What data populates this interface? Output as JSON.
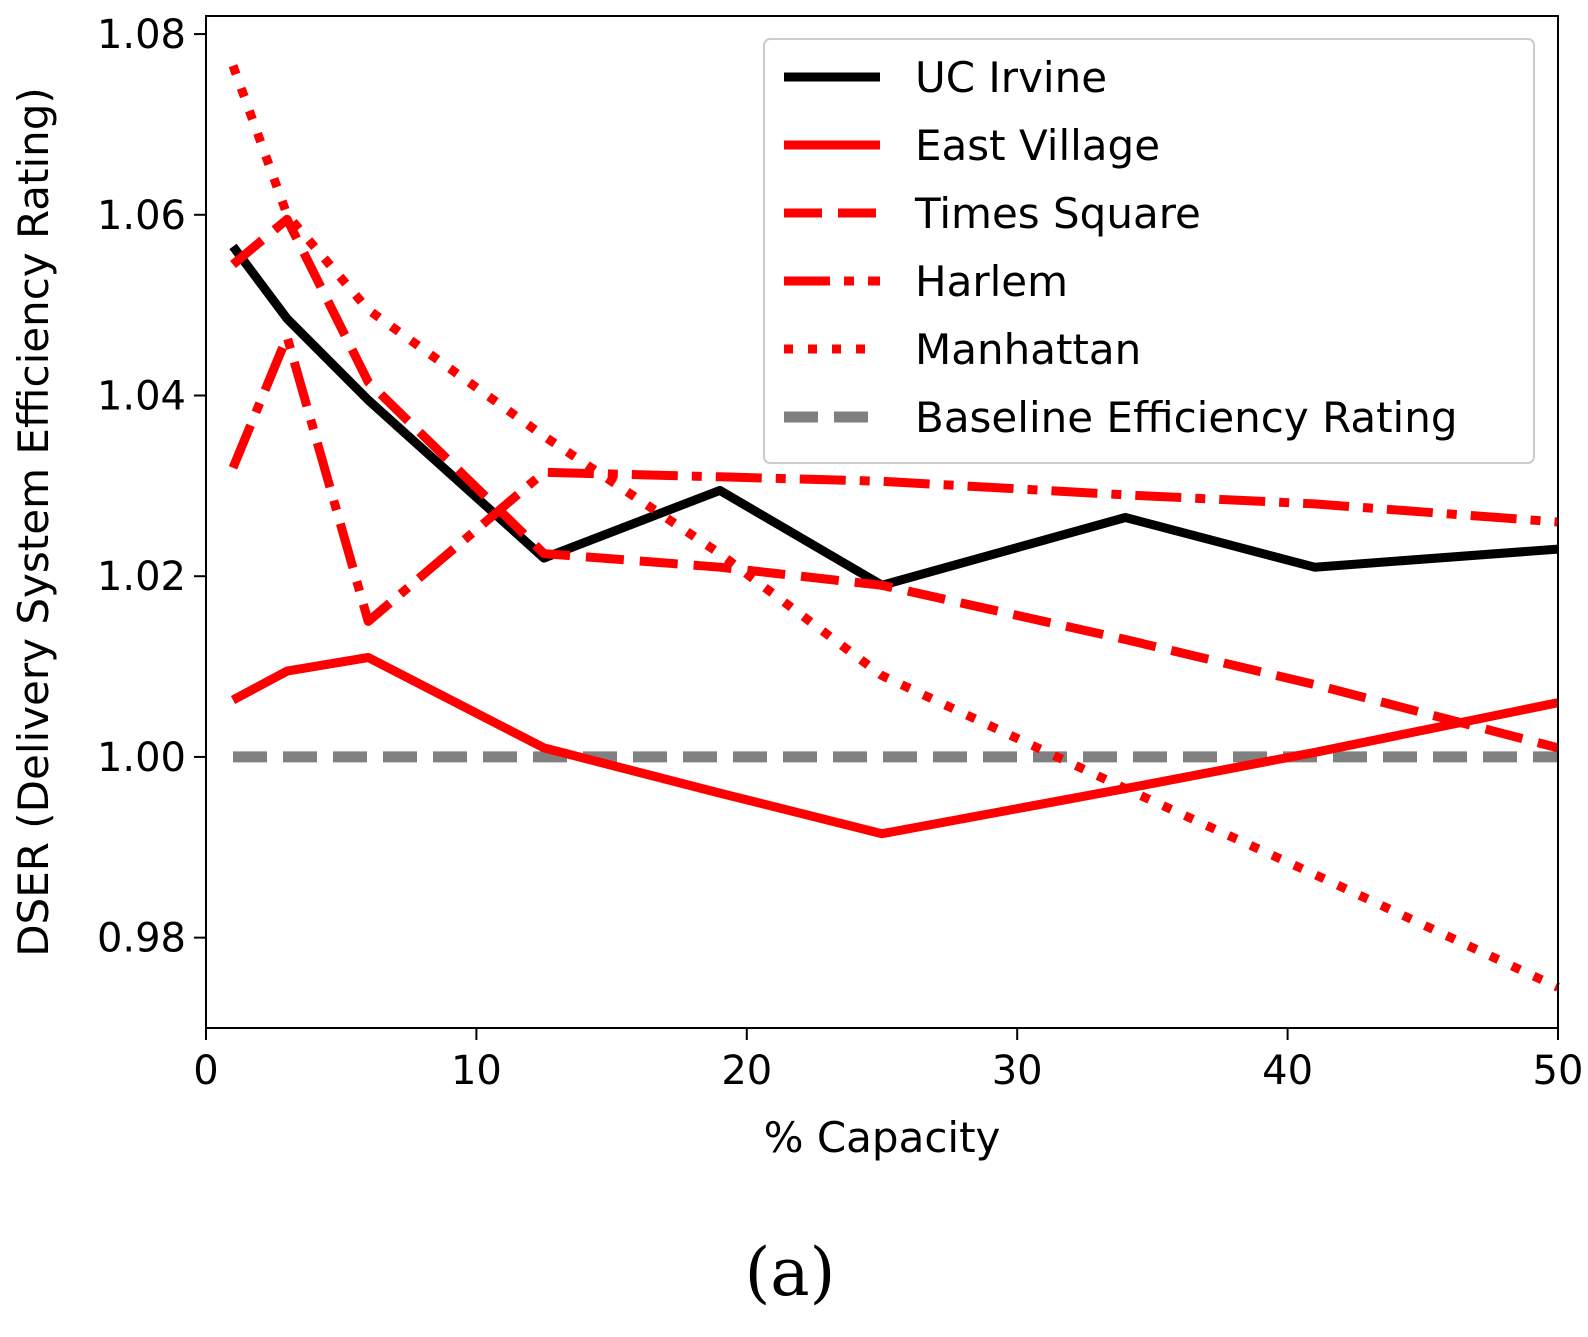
{
  "figure": {
    "caption": "(a)"
  },
  "chart_data": {
    "type": "line",
    "title": "",
    "xlabel": "% Capacity",
    "ylabel": "DSER (Delivery System Efficiency Rating)",
    "xlim": [
      0,
      50
    ],
    "ylim": [
      0.97,
      1.082
    ],
    "xticks": [
      0,
      10,
      20,
      30,
      40,
      50
    ],
    "xtick_labels": [
      "0",
      "10",
      "20",
      "30",
      "40",
      "50"
    ],
    "yticks": [
      0.98,
      1.0,
      1.02,
      1.04,
      1.06,
      1.08
    ],
    "ytick_labels": [
      "0.98",
      "1.00",
      "1.02",
      "1.04",
      "1.06",
      "1.08"
    ],
    "grid": false,
    "legend_position": "top-right",
    "series": [
      {
        "name": "UC Irvine",
        "color": "#000000",
        "style": "solid",
        "x": [
          1,
          3,
          6,
          12.5,
          19,
          25,
          34,
          41,
          50
        ],
        "y": [
          1.0565,
          1.0485,
          1.0395,
          1.022,
          1.0295,
          1.019,
          1.0265,
          1.021,
          1.023
        ]
      },
      {
        "name": "East Village",
        "color": "#ff0000",
        "style": "solid",
        "x": [
          1,
          3,
          6,
          12.5,
          19,
          25,
          34,
          41,
          50
        ],
        "y": [
          1.0063,
          1.0095,
          1.011,
          1.001,
          0.996,
          0.9915,
          0.9965,
          1.0005,
          1.006
        ]
      },
      {
        "name": "Times Square",
        "color": "#ff0000",
        "style": "dashed",
        "x": [
          1,
          3,
          6,
          12.5,
          19,
          25,
          34,
          41,
          50
        ],
        "y": [
          1.0545,
          1.0595,
          1.0415,
          1.0225,
          1.021,
          1.019,
          1.013,
          1.008,
          1.001
        ]
      },
      {
        "name": "Harlem",
        "color": "#ff0000",
        "style": "dashdot",
        "x": [
          1,
          3,
          6,
          12.5,
          19,
          25,
          34,
          41,
          50
        ],
        "y": [
          1.032,
          1.0465,
          1.015,
          1.0315,
          1.031,
          1.0305,
          1.029,
          1.028,
          1.026
        ]
      },
      {
        "name": "Manhattan",
        "color": "#ff0000",
        "style": "dotted",
        "x": [
          1,
          3,
          6,
          12.5,
          19,
          25,
          34,
          41,
          50
        ],
        "y": [
          1.0765,
          1.06,
          1.0495,
          1.0355,
          1.0225,
          1.009,
          0.9965,
          0.987,
          0.9745
        ]
      },
      {
        "name": "Baseline Efficiency Rating",
        "color": "#808080",
        "style": "dashed-gray",
        "x": [
          1,
          50
        ],
        "y": [
          1.0,
          1.0
        ]
      }
    ]
  }
}
